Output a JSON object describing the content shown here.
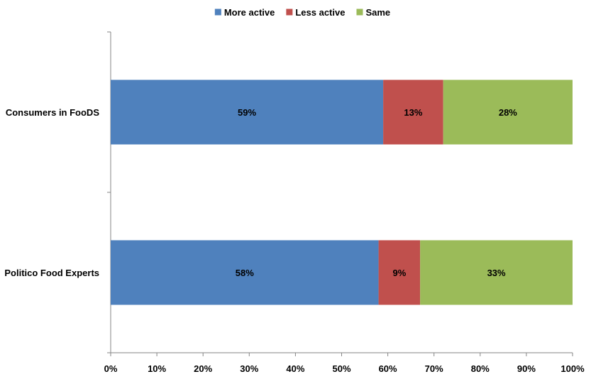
{
  "chart_data": {
    "type": "bar",
    "orientation": "horizontal",
    "stacked": true,
    "categories": [
      "Consumers in FooDS",
      "Politico Food Experts"
    ],
    "series": [
      {
        "name": "More active",
        "values": [
          59,
          58
        ],
        "labels": [
          "59%",
          "58%"
        ],
        "color": "#4F81BD"
      },
      {
        "name": "Less active",
        "values": [
          13,
          9
        ],
        "labels": [
          "13%",
          "9%"
        ],
        "color": "#C0504D"
      },
      {
        "name": "Same",
        "values": [
          28,
          33
        ],
        "labels": [
          "28%",
          "33%"
        ],
        "color": "#9BBB59"
      }
    ],
    "xticks": [
      "0%",
      "10%",
      "20%",
      "30%",
      "40%",
      "50%",
      "60%",
      "70%",
      "80%",
      "90%",
      "100%"
    ],
    "xlim": [
      0,
      100
    ],
    "title": "",
    "xlabel": "",
    "ylabel": "",
    "legend_position": "top-center",
    "grid": false
  }
}
